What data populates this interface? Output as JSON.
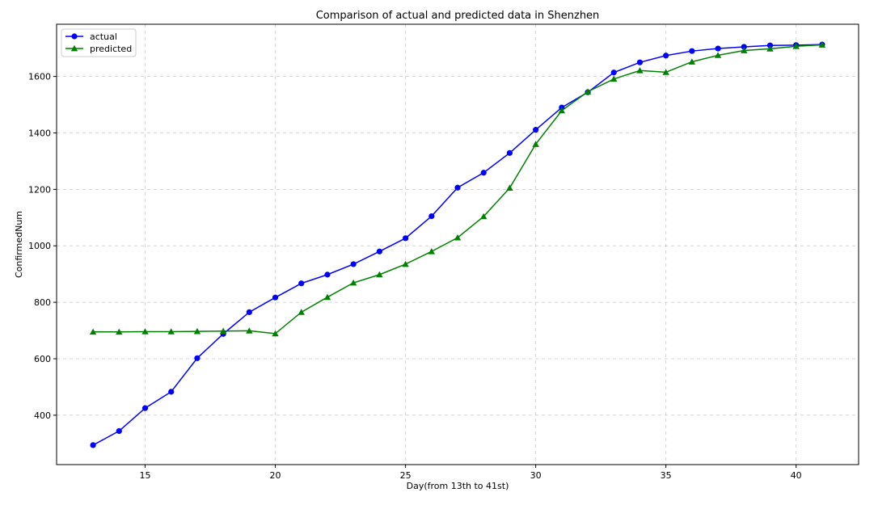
{
  "chart_data": {
    "type": "line",
    "title": "Comparison of actual and predicted data in Shenzhen",
    "xlabel": "Day(from 13th to 41st)",
    "ylabel": "ConfirmedNum",
    "xlim": [
      11.6,
      42.4
    ],
    "ylim": [
      225,
      1785
    ],
    "xticks": [
      15,
      20,
      25,
      30,
      35,
      40
    ],
    "yticks": [
      400,
      600,
      800,
      1000,
      1200,
      1400,
      1600
    ],
    "grid": true,
    "legend_position": "top-left",
    "x": [
      13,
      14,
      15,
      16,
      17,
      18,
      19,
      20,
      21,
      22,
      23,
      24,
      25,
      26,
      27,
      28,
      29,
      30,
      31,
      32,
      33,
      34,
      35,
      36,
      37,
      38,
      39,
      40,
      41
    ],
    "series": [
      {
        "name": "actual",
        "color": "#0000ff",
        "marker": "circle",
        "values": [
          294,
          344,
          425,
          483,
          602,
          688,
          765,
          817,
          867,
          898,
          935,
          980,
          1027,
          1105,
          1206,
          1259,
          1329,
          1411,
          1490,
          1544,
          1614,
          1650,
          1674,
          1690,
          1699,
          1705,
          1710,
          1711,
          1713
        ]
      },
      {
        "name": "predicted",
        "color": "#008000",
        "marker": "triangle",
        "values": [
          695,
          695,
          696,
          696,
          697,
          698,
          699,
          689,
          765,
          818,
          869,
          898,
          935,
          980,
          1029,
          1104,
          1205,
          1360,
          1479,
          1546,
          1591,
          1621,
          1615,
          1652,
          1675,
          1692,
          1698,
          1707,
          1712
        ]
      }
    ]
  }
}
